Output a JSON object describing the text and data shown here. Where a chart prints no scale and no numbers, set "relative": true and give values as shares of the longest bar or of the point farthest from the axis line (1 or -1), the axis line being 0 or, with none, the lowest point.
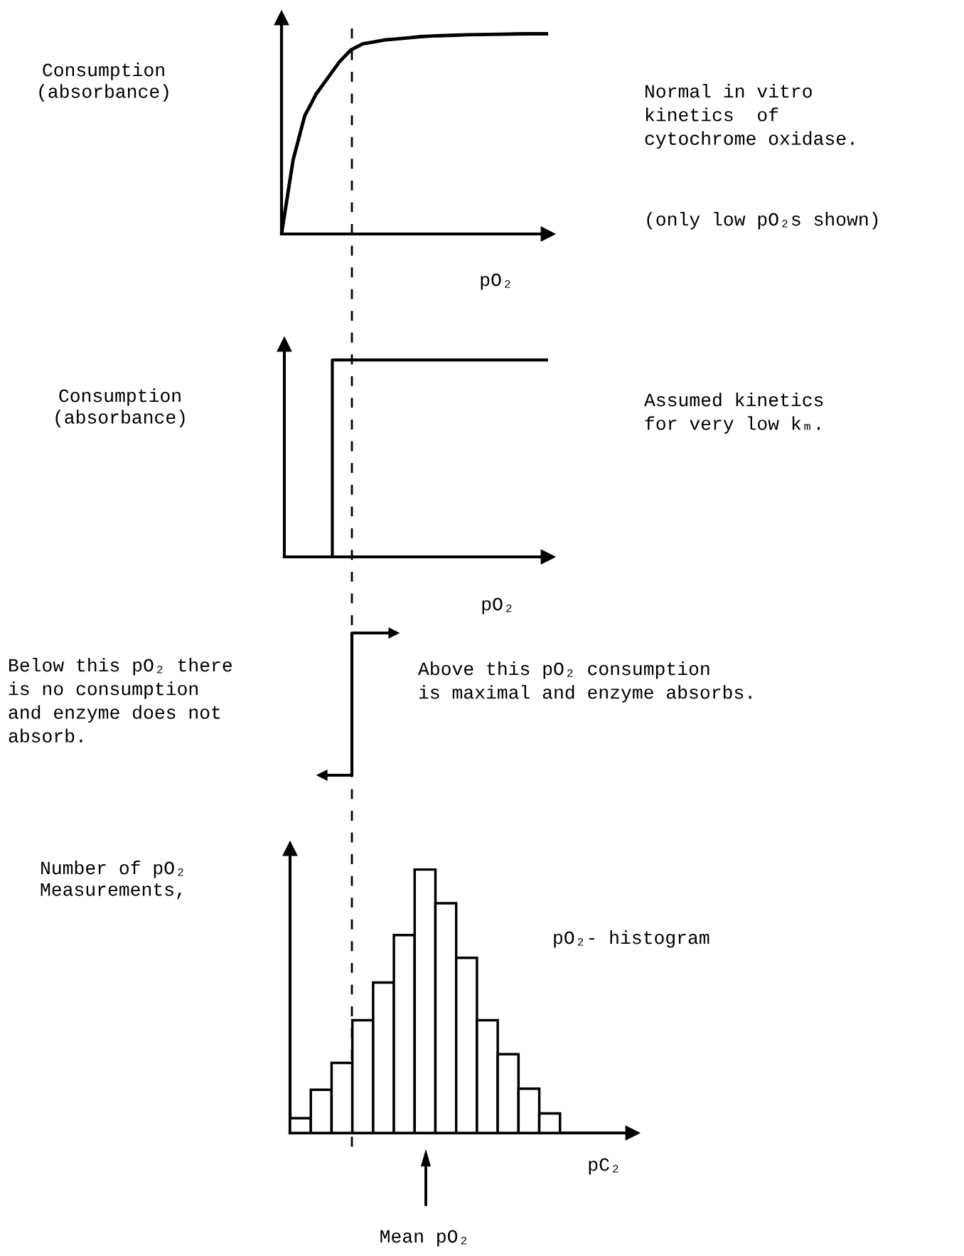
{
  "chart_data": [
    {
      "type": "line",
      "relative": true,
      "ylabel": "Consumption\n(absorbance)",
      "xlabel": "pO₂",
      "categories": [
        null,
        null,
        null,
        null,
        null,
        null,
        null,
        null,
        null,
        null,
        null,
        null,
        null,
        null,
        null,
        null,
        null,
        null,
        null,
        null,
        null,
        null,
        null,
        null
      ],
      "series": [
        {
          "color": "#000000",
          "values": [
            0,
            0.37,
            0.59,
            0.7,
            0.78,
            0.86,
            0.92,
            0.95,
            0.96,
            0.97,
            0.975,
            0.98,
            0.986,
            0.989,
            0.991,
            0.993,
            0.995,
            0.996,
            0.997,
            0.998,
            0.999,
            1,
            1,
            1
          ]
        }
      ],
      "annotations": [
        "Normal in vitro\nkinetics  of\ncytochrome oxidase.",
        "(only low pO₂s shown)"
      ]
    },
    {
      "type": "step",
      "relative": true,
      "ylabel": "Consumption\n(absorbance)",
      "xlabel": "pO₂",
      "categories": [
        null,
        null,
        null,
        null,
        null,
        null,
        null,
        null,
        null,
        null,
        null,
        null
      ],
      "series": [
        {
          "color": "#000000",
          "values": [
            0,
            0,
            0,
            1,
            1,
            1,
            1,
            1,
            1,
            1,
            1,
            1
          ]
        }
      ],
      "annotations": [
        "Assumed kinetics\nfor very low kₘ.",
        "Below this pO₂ there\nis no consumption\nand enzyme does not\nabsorb.",
        "Above this pO₂ consumption\nis maximal and enzyme absorbs."
      ]
    },
    {
      "type": "bar",
      "relative": true,
      "ylabel": "Number of pO₂\nMeasurements,",
      "xlabel": "pC₂",
      "categories": [
        null,
        null,
        null,
        null,
        null,
        null,
        null,
        null,
        null,
        null,
        null,
        null,
        null
      ],
      "series": [
        {
          "color": "#ffffff",
          "values": [
            0.056,
            0.164,
            0.266,
            0.428,
            0.571,
            0.751,
            1,
            0.872,
            0.665,
            0.428,
            0.299,
            0.168,
            0.074
          ]
        }
      ],
      "annotations": [
        "pO₂- histogram",
        "Mean pO₂"
      ]
    }
  ]
}
